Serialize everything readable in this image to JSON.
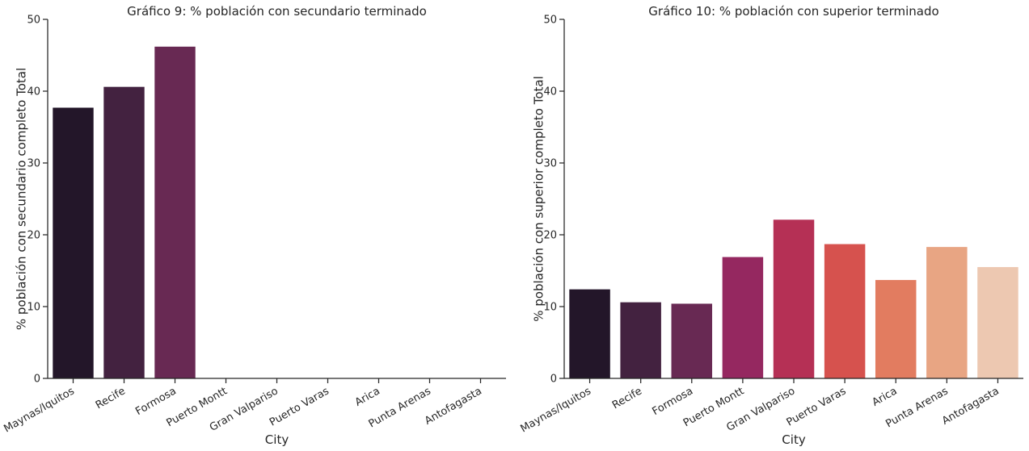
{
  "chart_data": [
    {
      "type": "bar",
      "title": "Gráfico 9: % población con secundario terminado",
      "xlabel": "City",
      "ylabel": "% población con secundario completo Total",
      "ylim": [
        0,
        50
      ],
      "yticks": [
        0,
        10,
        20,
        30,
        40,
        50
      ],
      "categories": [
        "Maynas/Iquitos",
        "Recife",
        "Formosa",
        "Puerto Montt",
        "Gran Valpariso",
        "Puerto Varas",
        "Arica",
        "Punta Arenas",
        "Antofagasta"
      ],
      "values": [
        37.7,
        40.6,
        46.2,
        0,
        0,
        0,
        0,
        0,
        0
      ],
      "colors": [
        "#231629",
        "#432240",
        "#682953",
        "#952860",
        "#b53055",
        "#d6524e",
        "#e27c60",
        "#e8a583",
        "#edc8b1"
      ],
      "grid": false
    },
    {
      "type": "bar",
      "title": "Gráfico 10: % población con superior terminado",
      "xlabel": "City",
      "ylabel": "% población con superior completo Total",
      "ylim": [
        0,
        50
      ],
      "yticks": [
        0,
        10,
        20,
        30,
        40,
        50
      ],
      "categories": [
        "Maynas/Iquitos",
        "Recife",
        "Formosa",
        "Puerto Montt",
        "Gran Valpariso",
        "Puerto Varas",
        "Arica",
        "Punta Arenas",
        "Antofagasta"
      ],
      "values": [
        12.4,
        10.6,
        10.4,
        16.9,
        22.1,
        18.7,
        13.7,
        18.3,
        15.5
      ],
      "colors": [
        "#231629",
        "#432240",
        "#682953",
        "#952860",
        "#b53055",
        "#d6524e",
        "#e27c60",
        "#e8a583",
        "#edc8b1"
      ],
      "grid": false
    }
  ]
}
